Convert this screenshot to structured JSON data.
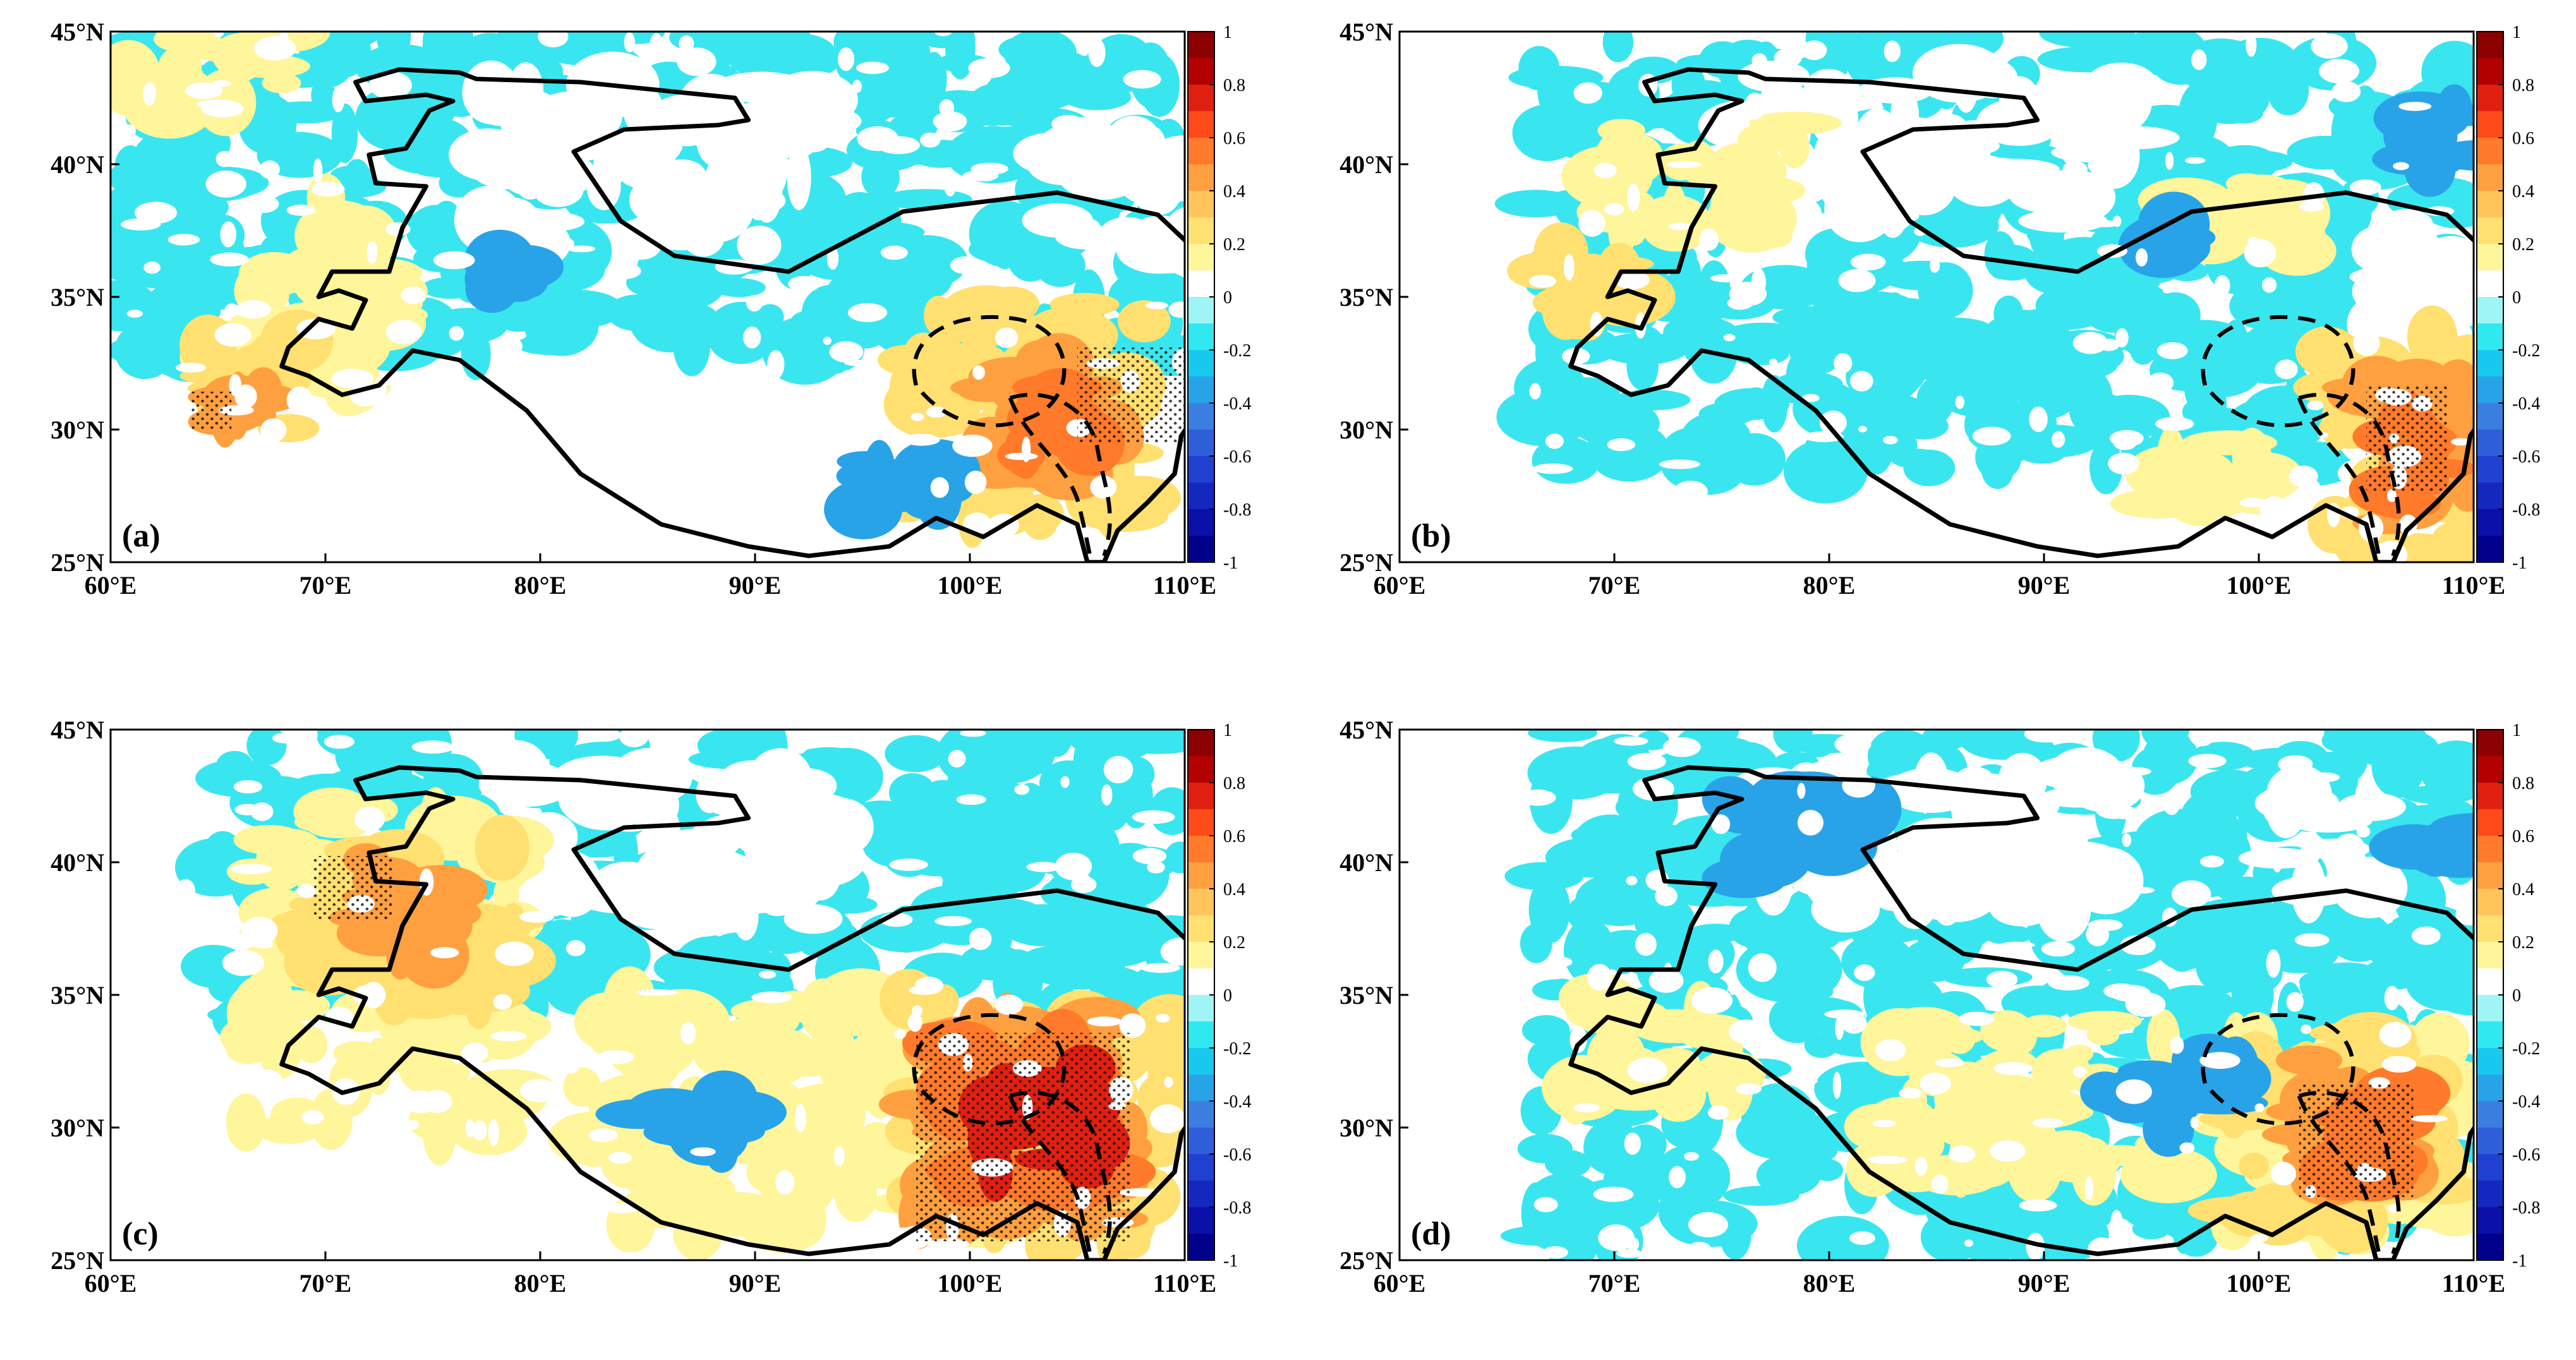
{
  "figure": {
    "panels": [
      {
        "id": "a",
        "label": "(a)"
      },
      {
        "id": "b",
        "label": "(b)"
      },
      {
        "id": "c",
        "label": "(c)"
      },
      {
        "id": "d",
        "label": "(d)"
      }
    ],
    "x_ticks": [
      "60°E",
      "70°E",
      "80°E",
      "90°E",
      "100°E",
      "110°E"
    ],
    "y_ticks": [
      "45°N",
      "40°N",
      "35°N",
      "30°N",
      "25°N"
    ],
    "lon_range": [
      60,
      110
    ],
    "lat_range": [
      25,
      45
    ],
    "colorbar": {
      "ticks": [
        "1",
        "0.8",
        "0.6",
        "0.4",
        "0.2",
        "0",
        "-0.2",
        "-0.4",
        "-0.6",
        "-0.8",
        "-1"
      ],
      "range": [
        -1,
        1
      ],
      "colors_high_to_low": [
        "#8b0000",
        "#b30000",
        "#e02010",
        "#ff4a1a",
        "#ff7a2a",
        "#ffa040",
        "#ffc45a",
        "#ffe070",
        "#fff59a",
        "#ffffff",
        "#9ff5f5",
        "#30e8f0",
        "#18c8ee",
        "#29a3e8",
        "#3a7fe0",
        "#2f5fd8",
        "#2040d0",
        "#1428c0",
        "#0a10a8",
        "#00008b"
      ]
    }
  }
}
